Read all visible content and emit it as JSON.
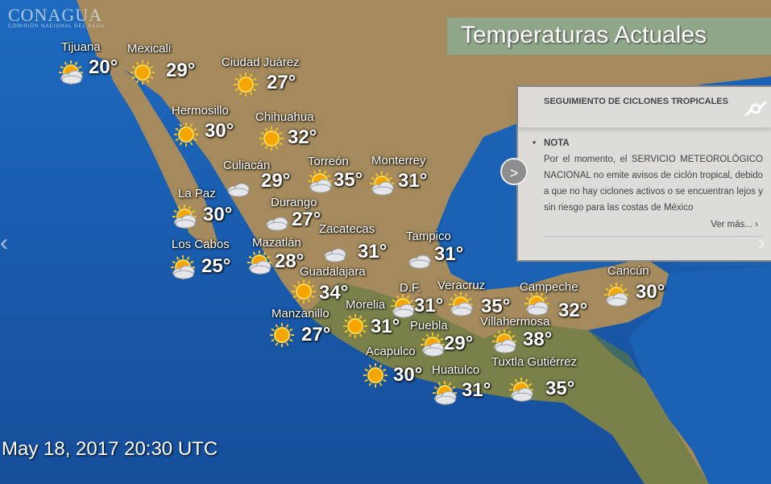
{
  "logo": {
    "name": "CONAGUA",
    "subtitle": "COMISIÓN NACIONAL DEL AGUA"
  },
  "header": {
    "title": "Temperaturas Actuales"
  },
  "timestamp": "May 18, 2017 20:30 UTC",
  "cities": [
    {
      "name": "Tijuana",
      "temp": "20°",
      "icon": "partly-cloudy"
    },
    {
      "name": "Mexicali",
      "temp": "29°",
      "icon": "sunny"
    },
    {
      "name": "Ciudad Juárez",
      "temp": "27°",
      "icon": "sunny"
    },
    {
      "name": "Hermosillo",
      "temp": "30°",
      "icon": "sunny"
    },
    {
      "name": "Chihuahua",
      "temp": "32°",
      "icon": "sunny"
    },
    {
      "name": "Culiacán",
      "temp": "29°",
      "icon": "cloudy"
    },
    {
      "name": "Torreón",
      "temp": "35°",
      "icon": "partly-cloudy"
    },
    {
      "name": "Monterrey",
      "temp": "31°",
      "icon": "partly-cloudy"
    },
    {
      "name": "La Paz",
      "temp": "30°",
      "icon": "partly-cloudy"
    },
    {
      "name": "Durango",
      "temp": "27°",
      "icon": "cloudy"
    },
    {
      "name": "Zacatecas",
      "temp": "31°",
      "icon": "cloudy"
    },
    {
      "name": "Tampico",
      "temp": "31°",
      "icon": "cloudy"
    },
    {
      "name": "Los Cabos",
      "temp": "25°",
      "icon": "partly-cloudy"
    },
    {
      "name": "Mazatlán",
      "temp": "28°",
      "icon": "partly-cloudy"
    },
    {
      "name": "Guadalajara",
      "temp": "34°",
      "icon": "sunny"
    },
    {
      "name": "D.F.",
      "temp": "31°",
      "icon": "partly-cloudy"
    },
    {
      "name": "Veracruz",
      "temp": "35°",
      "icon": "partly-cloudy"
    },
    {
      "name": "Campeche",
      "temp": "32°",
      "icon": "partly-cloudy"
    },
    {
      "name": "Cancún",
      "temp": "30°",
      "icon": "partly-cloudy"
    },
    {
      "name": "Manzanillo",
      "temp": "27°",
      "icon": "sunny"
    },
    {
      "name": "Morelia",
      "temp": "31°",
      "icon": "sunny"
    },
    {
      "name": "Puebla",
      "temp": "29°",
      "icon": "partly-cloudy"
    },
    {
      "name": "Villahermosa",
      "temp": "38°",
      "icon": "partly-cloudy"
    },
    {
      "name": "Acapulco",
      "temp": "30°",
      "icon": "sunny"
    },
    {
      "name": "Huatulco",
      "temp": "31°",
      "icon": "partly-cloudy"
    },
    {
      "name": "Tuxtla Gutiérrez",
      "temp": "35°",
      "icon": "partly-cloudy"
    }
  ],
  "cyclone_panel": {
    "title": "SEGUIMIENTO DE CICLONES TROPICALES",
    "icon": "cyclone-icon",
    "note_heading": "NOTA",
    "note_text": "Por el momento, el SERVICIO METEOROLÓGICO NACIONAL no emite avisos de ciclón tropical, debido a que no hay ciclones activos o se encuentran lejos y sin riesgo para las costas de México",
    "more_link": "Ver más... ›",
    "toggle_label": ">"
  },
  "carousel": {
    "prev": "‹",
    "next": "›"
  }
}
